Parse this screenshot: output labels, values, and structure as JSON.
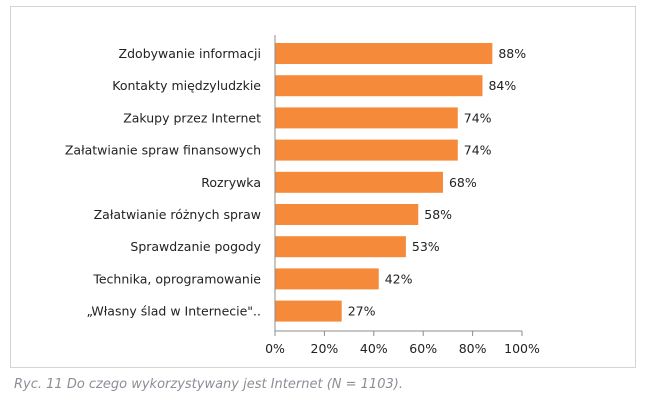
{
  "chart_data": {
    "type": "bar",
    "orientation": "horizontal",
    "categories": [
      "Zdobywanie informacji",
      "Kontakty międzyludzkie",
      "Zakupy przez Internet",
      "Załatwianie spraw finansowych",
      "Rozrywka",
      "Załatwianie różnych spraw",
      "Sprawdzanie pogody",
      "Technika, oprogramowanie",
      "„Własny ślad w Internecie\".."
    ],
    "values": [
      88,
      84,
      74,
      74,
      68,
      58,
      53,
      42,
      27
    ],
    "value_labels": [
      "88%",
      "84%",
      "74%",
      "74%",
      "68%",
      "58%",
      "53%",
      "42%",
      "27%"
    ],
    "xlim": [
      0,
      100
    ],
    "x_ticks": [
      "0%",
      "20%",
      "40%",
      "60%",
      "80%",
      "100%"
    ],
    "x_tick_values": [
      0,
      20,
      40,
      60,
      80,
      100
    ],
    "grid": false,
    "bar_color": "#f58b3a"
  },
  "caption": "Ryc. 11 Do czego wykorzystywany jest Internet (N = 1103)."
}
